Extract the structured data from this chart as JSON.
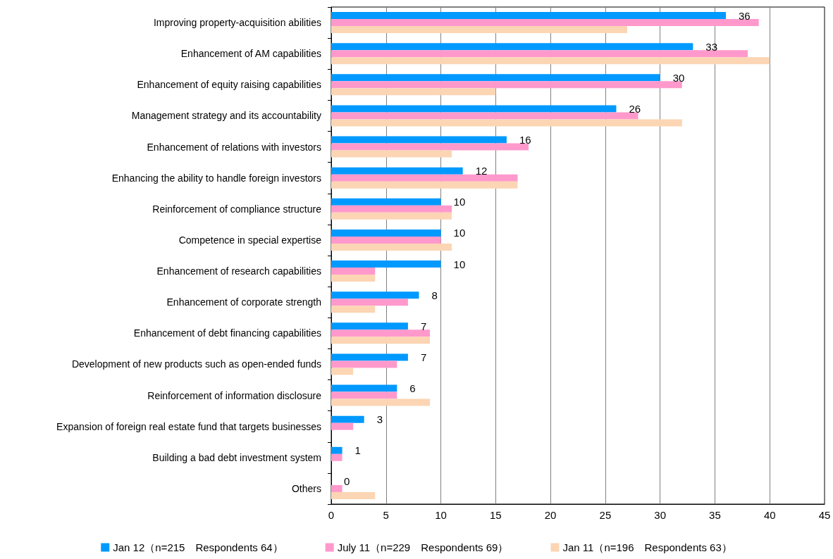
{
  "chart_data": {
    "type": "bar",
    "orientation": "horizontal",
    "categories": [
      "Improving property-acquisition abilities",
      "Enhancement of AM capabilities",
      "Enhancement of equity raising capabilities",
      "Management strategy and its accountability",
      "Enhancement of relations with investors",
      "Enhancing the ability to handle foreign investors",
      "Reinforcement of compliance structure",
      "Competence in special expertise",
      "Enhancement of research capabilities",
      "Enhancement of corporate strength",
      "Enhancement of debt financing capabilities",
      "Development of new products such as open-ended funds",
      "Reinforcement of information disclosure",
      "Expansion of foreign real estate fund that targets businesses",
      "Building a bad debt investment system",
      "Others"
    ],
    "series": [
      {
        "name": "Jan 12（n=215　Respondents 64）",
        "color": "#0099ff",
        "values": [
          36,
          33,
          30,
          26,
          16,
          12,
          10,
          10,
          10,
          8,
          7,
          7,
          6,
          3,
          1,
          0
        ],
        "value_labels": [
          "36",
          "33",
          "30",
          "26",
          "16",
          "12",
          "10",
          "10",
          "10",
          "8",
          "7",
          "7",
          "6",
          "3",
          "1",
          "0"
        ]
      },
      {
        "name": "July 11（n=229　Respondents 69）",
        "color": "#ff99cc",
        "values": [
          39,
          38,
          32,
          28,
          18,
          17,
          11,
          10,
          4,
          7,
          9,
          6,
          6,
          2,
          1,
          1
        ]
      },
      {
        "name": "Jan 11（n=196　Respondents 63）",
        "color": "#fcd5b4",
        "values": [
          27,
          40,
          15,
          32,
          11,
          17,
          11,
          11,
          4,
          4,
          9,
          2,
          9,
          0,
          0,
          4
        ]
      }
    ],
    "xlim": [
      0,
      45
    ],
    "xticks": [
      0,
      5,
      10,
      15,
      20,
      25,
      30,
      35,
      40,
      45
    ],
    "grid": "x",
    "legend": "bottom"
  }
}
